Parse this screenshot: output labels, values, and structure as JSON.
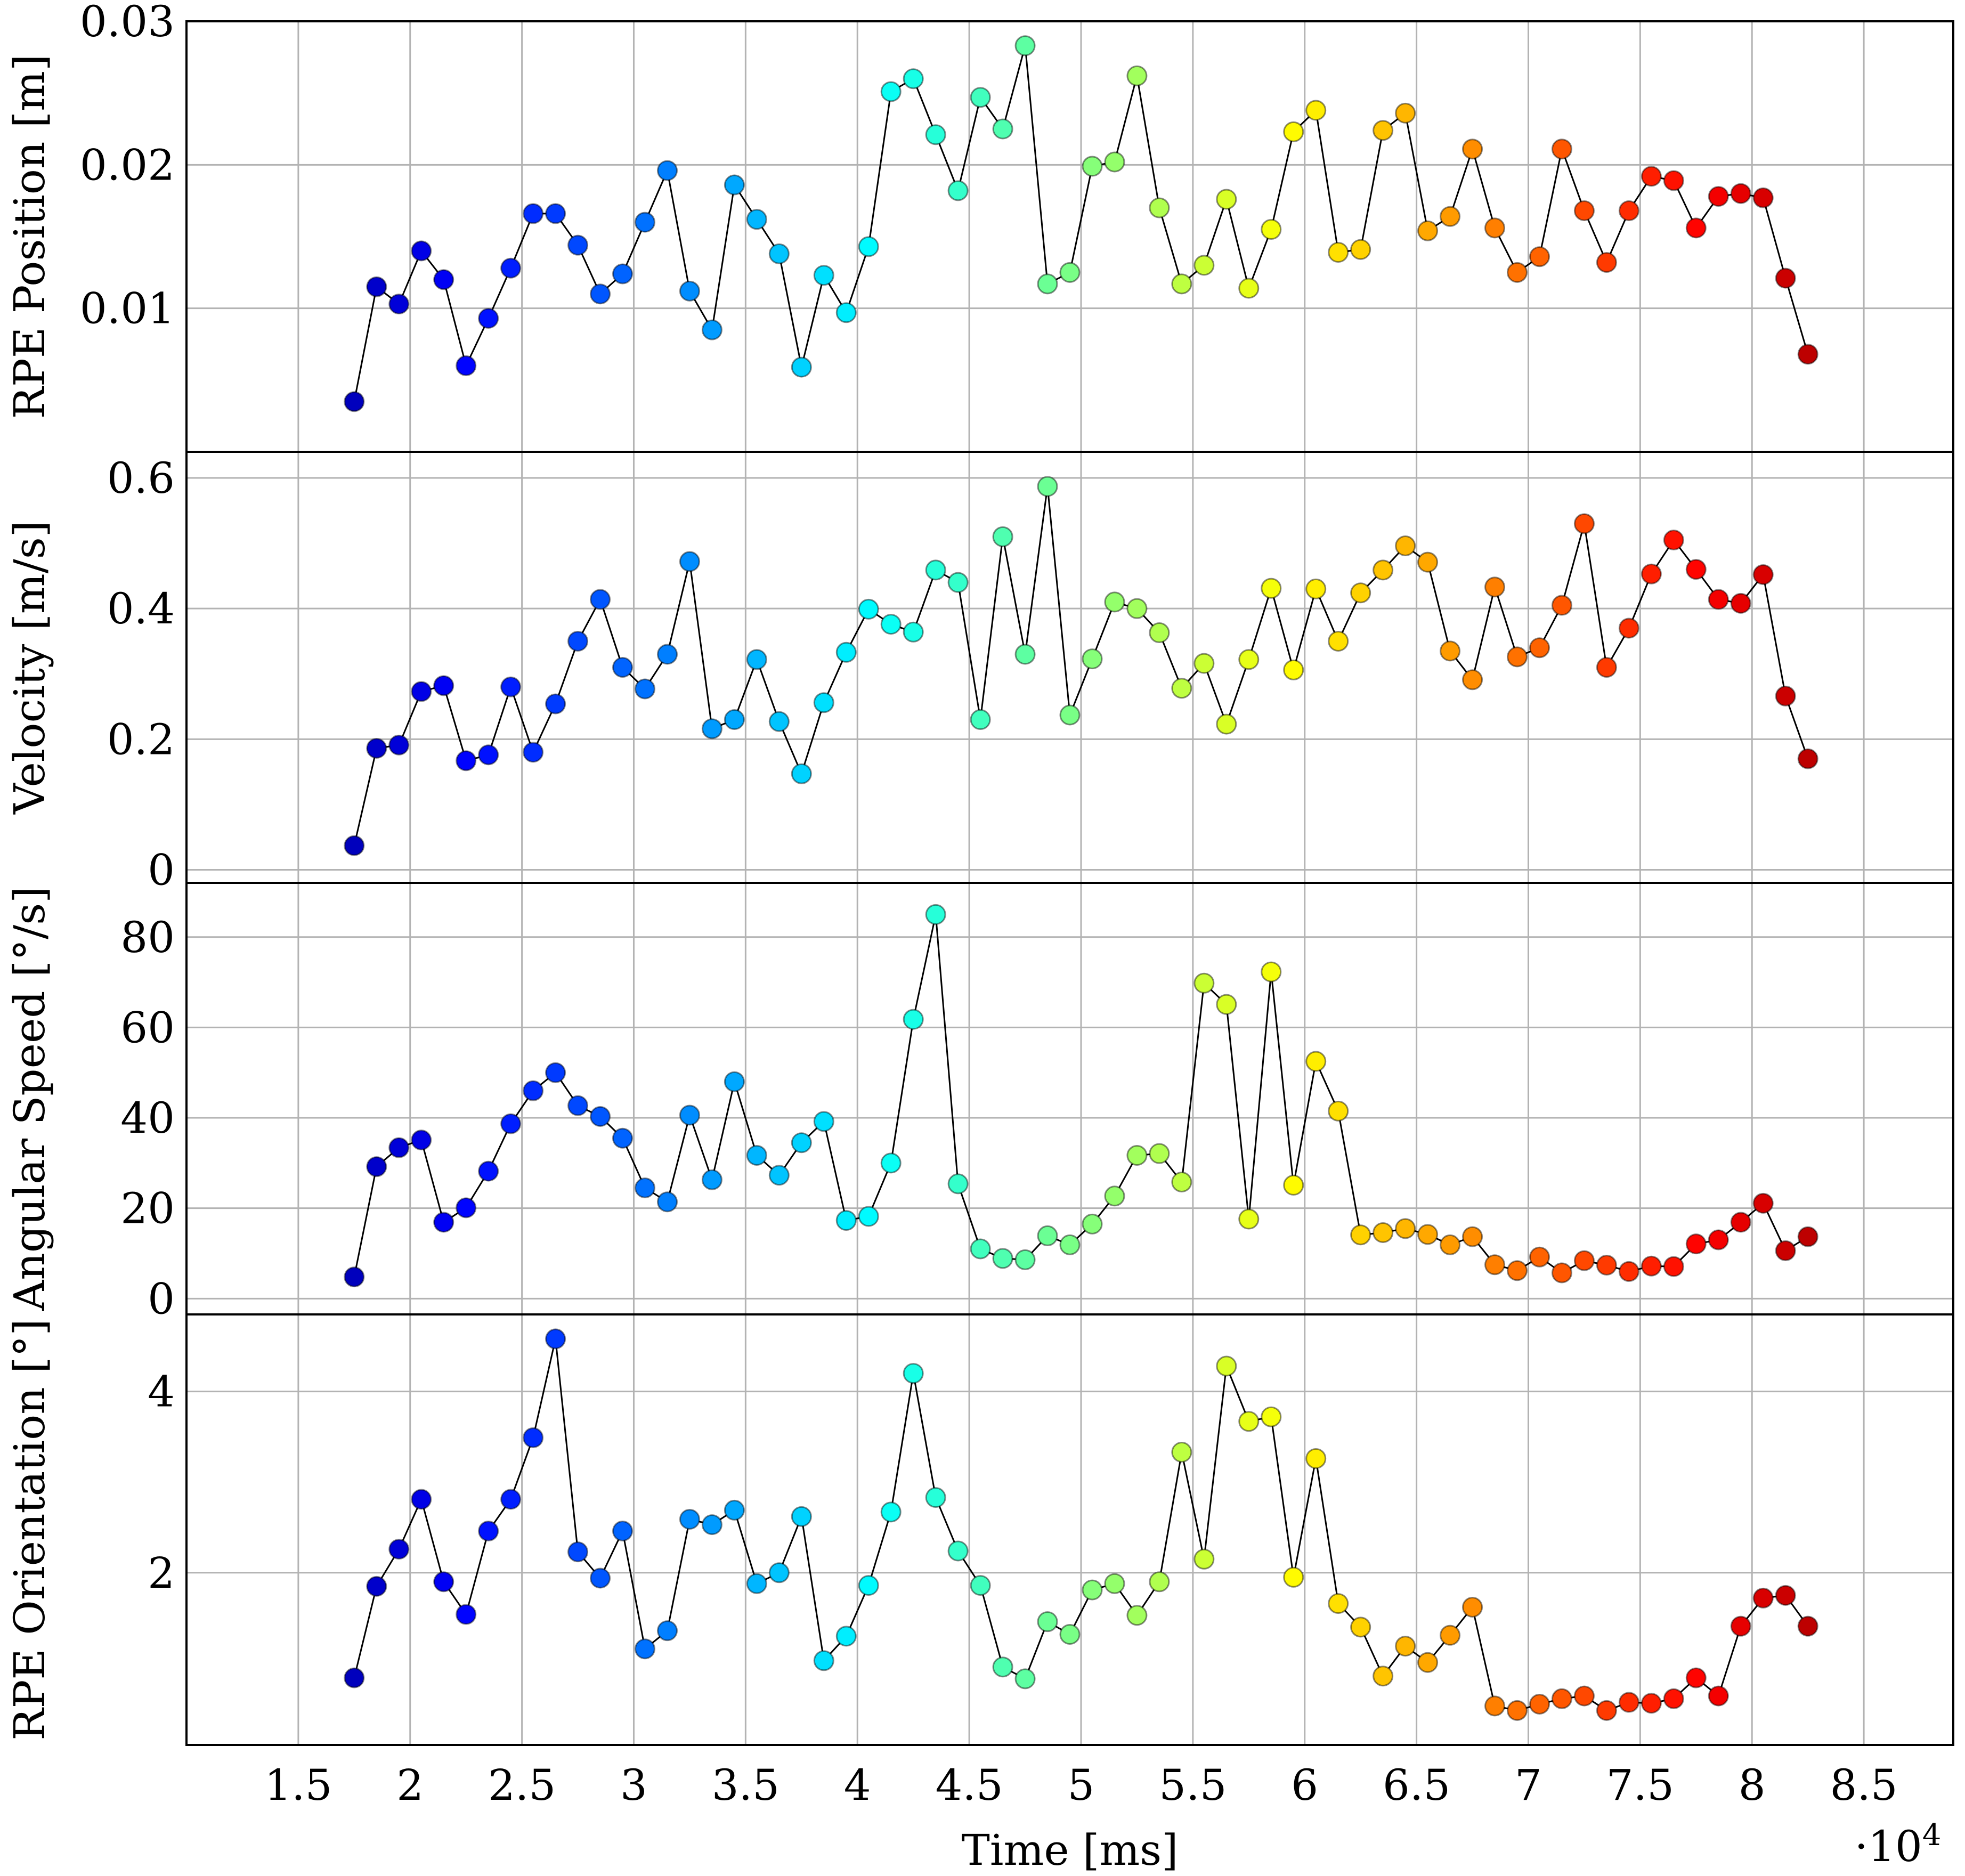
{
  "figure": {
    "xlabel": "Time [ms]",
    "x_multiplier": "·10",
    "x_multiplier_exp": "4",
    "grid": true,
    "marker_colormap": "jet",
    "line_color": "#000000"
  },
  "chart_data": [
    {
      "type": "line",
      "ylabel": "RPE Position [m]",
      "xlim": [
        1.0,
        8.9
      ],
      "ylim": [
        0.0,
        0.03
      ],
      "xticks": [
        "1.5",
        "2",
        "2.5",
        "3",
        "3.5",
        "4",
        "4.5",
        "5",
        "5.5",
        "6",
        "6.5",
        "7",
        "7.5",
        "8",
        "8.5"
      ],
      "yticks": [
        "0.01",
        "0.02",
        "0.03"
      ],
      "x": [
        1.75,
        1.85,
        1.95,
        2.05,
        2.15,
        2.25,
        2.35,
        2.45,
        2.55,
        2.65,
        2.75,
        2.85,
        2.95,
        3.05,
        3.15,
        3.25,
        3.35,
        3.45,
        3.55,
        3.65,
        3.75,
        3.85,
        3.95,
        4.05,
        4.15,
        4.25,
        4.35,
        4.45,
        4.55,
        4.65,
        4.75,
        4.85,
        4.95,
        5.05,
        5.15,
        5.25,
        5.35,
        5.45,
        5.55,
        5.65,
        5.75,
        5.85,
        5.95,
        6.05,
        6.15,
        6.25,
        6.35,
        6.45,
        6.55,
        6.65,
        6.75,
        6.85,
        6.95,
        7.05,
        7.15,
        7.25,
        7.35,
        7.45,
        7.55,
        7.65,
        7.75,
        7.85,
        7.95,
        8.05,
        8.15,
        8.25
      ],
      "values": [
        0.0035,
        0.0115,
        0.0103,
        0.014,
        0.012,
        0.006,
        0.0093,
        0.0128,
        0.0166,
        0.0166,
        0.0144,
        0.011,
        0.0124,
        0.016,
        0.0196,
        0.0112,
        0.0085,
        0.0186,
        0.0162,
        0.0138,
        0.0059,
        0.0123,
        0.0097,
        0.0143,
        0.0251,
        0.026,
        0.0221,
        0.0182,
        0.0247,
        0.0225,
        0.0283,
        0.0117,
        0.0125,
        0.0199,
        0.0202,
        0.0262,
        0.017,
        0.0117,
        0.013,
        0.0176,
        0.0114,
        0.0155,
        0.0223,
        0.0238,
        0.0139,
        0.0141,
        0.0224,
        0.0236,
        0.0154,
        0.0164,
        0.0211,
        0.0156,
        0.0125,
        0.0136,
        0.0211,
        0.0168,
        0.0132,
        0.0168,
        0.0192,
        0.0189,
        0.0156,
        0.0178,
        0.018,
        0.0177,
        0.0121,
        0.0068
      ]
    },
    {
      "type": "line",
      "ylabel": "Velocity [m/s]",
      "xlim": [
        1.0,
        8.9
      ],
      "ylim": [
        -0.02,
        0.64
      ],
      "xticks": [
        "1.5",
        "2",
        "2.5",
        "3",
        "3.5",
        "4",
        "4.5",
        "5",
        "5.5",
        "6",
        "6.5",
        "7",
        "7.5",
        "8",
        "8.5"
      ],
      "yticks": [
        "0",
        "0.2",
        "0.4",
        "0.6"
      ],
      "x": [
        1.75,
        1.85,
        1.95,
        2.05,
        2.15,
        2.25,
        2.35,
        2.45,
        2.55,
        2.65,
        2.75,
        2.85,
        2.95,
        3.05,
        3.15,
        3.25,
        3.35,
        3.45,
        3.55,
        3.65,
        3.75,
        3.85,
        3.95,
        4.05,
        4.15,
        4.25,
        4.35,
        4.45,
        4.55,
        4.65,
        4.75,
        4.85,
        4.95,
        5.05,
        5.15,
        5.25,
        5.35,
        5.45,
        5.55,
        5.65,
        5.75,
        5.85,
        5.95,
        6.05,
        6.15,
        6.25,
        6.35,
        6.45,
        6.55,
        6.65,
        6.75,
        6.85,
        6.95,
        7.05,
        7.15,
        7.25,
        7.35,
        7.45,
        7.55,
        7.65,
        7.75,
        7.85,
        7.95,
        8.05,
        8.15,
        8.25
      ],
      "values": [
        0.037,
        0.186,
        0.191,
        0.273,
        0.282,
        0.167,
        0.176,
        0.28,
        0.18,
        0.254,
        0.35,
        0.414,
        0.31,
        0.277,
        0.33,
        0.472,
        0.216,
        0.23,
        0.322,
        0.227,
        0.147,
        0.256,
        0.333,
        0.399,
        0.376,
        0.364,
        0.459,
        0.44,
        0.23,
        0.51,
        0.33,
        0.587,
        0.237,
        0.323,
        0.41,
        0.4,
        0.363,
        0.278,
        0.316,
        0.223,
        0.322,
        0.431,
        0.306,
        0.43,
        0.35,
        0.424,
        0.459,
        0.496,
        0.471,
        0.335,
        0.291,
        0.433,
        0.326,
        0.34,
        0.405,
        0.53,
        0.31,
        0.37,
        0.453,
        0.505,
        0.46,
        0.414,
        0.408,
        0.452,
        0.266,
        0.17
      ]
    },
    {
      "type": "line",
      "ylabel": "Angular Speed [°/s]",
      "xlim": [
        1.0,
        8.9
      ],
      "ylim": [
        -3.5,
        92
      ],
      "xticks": [
        "1.5",
        "2",
        "2.5",
        "3",
        "3.5",
        "4",
        "4.5",
        "5",
        "5.5",
        "6",
        "6.5",
        "7",
        "7.5",
        "8",
        "8.5"
      ],
      "yticks": [
        "0",
        "20",
        "40",
        "60",
        "80"
      ],
      "x": [
        1.75,
        1.85,
        1.95,
        2.05,
        2.15,
        2.25,
        2.35,
        2.45,
        2.55,
        2.65,
        2.75,
        2.85,
        2.95,
        3.05,
        3.15,
        3.25,
        3.35,
        3.45,
        3.55,
        3.65,
        3.75,
        3.85,
        3.95,
        4.05,
        4.15,
        4.25,
        4.35,
        4.45,
        4.55,
        4.65,
        4.75,
        4.85,
        4.95,
        5.05,
        5.15,
        5.25,
        5.35,
        5.45,
        5.55,
        5.65,
        5.75,
        5.85,
        5.95,
        6.05,
        6.15,
        6.25,
        6.35,
        6.45,
        6.55,
        6.65,
        6.75,
        6.85,
        6.95,
        7.05,
        7.15,
        7.25,
        7.35,
        7.45,
        7.55,
        7.65,
        7.75,
        7.85,
        7.95,
        8.05,
        8.15,
        8.25
      ],
      "values": [
        4.8,
        29.2,
        33.4,
        35.1,
        16.9,
        20.1,
        28.2,
        38.7,
        46.0,
        50.0,
        42.7,
        40.3,
        35.5,
        24.5,
        21.4,
        40.6,
        26.3,
        48.0,
        31.7,
        27.3,
        34.5,
        39.2,
        17.3,
        18.2,
        30.0,
        61.8,
        85.0,
        25.4,
        11.0,
        8.9,
        8.6,
        13.9,
        11.9,
        16.5,
        22.7,
        31.7,
        32.1,
        25.8,
        69.8,
        65.1,
        17.6,
        72.3,
        25.1,
        52.5,
        41.5,
        14.1,
        14.6,
        15.5,
        14.2,
        11.9,
        13.7,
        7.5,
        6.2,
        9.2,
        5.7,
        8.4,
        7.4,
        6.0,
        7.2,
        7.1,
        12.1,
        13.0,
        16.9,
        21.1,
        10.6,
        13.7
      ]
    },
    {
      "type": "line",
      "ylabel": "RPE Orientation [°]",
      "xlim": [
        1.0,
        8.9
      ],
      "ylim": [
        0.1,
        4.85
      ],
      "xticks": [
        "1.5",
        "2",
        "2.5",
        "3",
        "3.5",
        "4",
        "4.5",
        "5",
        "5.5",
        "6",
        "6.5",
        "7",
        "7.5",
        "8",
        "8.5"
      ],
      "yticks": [
        "2",
        "4"
      ],
      "x": [
        1.75,
        1.85,
        1.95,
        2.05,
        2.15,
        2.25,
        2.35,
        2.45,
        2.55,
        2.65,
        2.75,
        2.85,
        2.95,
        3.05,
        3.15,
        3.25,
        3.35,
        3.45,
        3.55,
        3.65,
        3.75,
        3.85,
        3.95,
        4.05,
        4.15,
        4.25,
        4.35,
        4.45,
        4.55,
        4.65,
        4.75,
        4.85,
        4.95,
        5.05,
        5.15,
        5.25,
        5.35,
        5.45,
        5.55,
        5.65,
        5.75,
        5.85,
        5.95,
        6.05,
        6.15,
        6.25,
        6.35,
        6.45,
        6.55,
        6.65,
        6.75,
        6.85,
        6.95,
        7.05,
        7.15,
        7.25,
        7.35,
        7.45,
        7.55,
        7.65,
        7.75,
        7.85,
        7.95,
        8.05,
        8.15,
        8.25
      ],
      "values": [
        0.84,
        1.85,
        2.26,
        2.81,
        1.9,
        1.54,
        2.46,
        2.81,
        3.49,
        4.58,
        2.23,
        1.94,
        2.46,
        1.16,
        1.36,
        2.59,
        2.53,
        2.69,
        1.88,
        2.0,
        2.62,
        1.03,
        1.3,
        1.86,
        2.67,
        4.2,
        2.83,
        2.24,
        1.86,
        0.96,
        0.83,
        1.46,
        1.32,
        1.81,
        1.88,
        1.53,
        1.9,
        3.33,
        2.15,
        4.28,
        3.67,
        3.72,
        1.95,
        3.26,
        1.66,
        1.4,
        0.86,
        1.19,
        1.01,
        1.31,
        1.62,
        0.53,
        0.48,
        0.55,
        0.61,
        0.64,
        0.48,
        0.57,
        0.56,
        0.61,
        0.84,
        0.64,
        1.41,
        1.72,
        1.75,
        1.41
      ]
    }
  ]
}
